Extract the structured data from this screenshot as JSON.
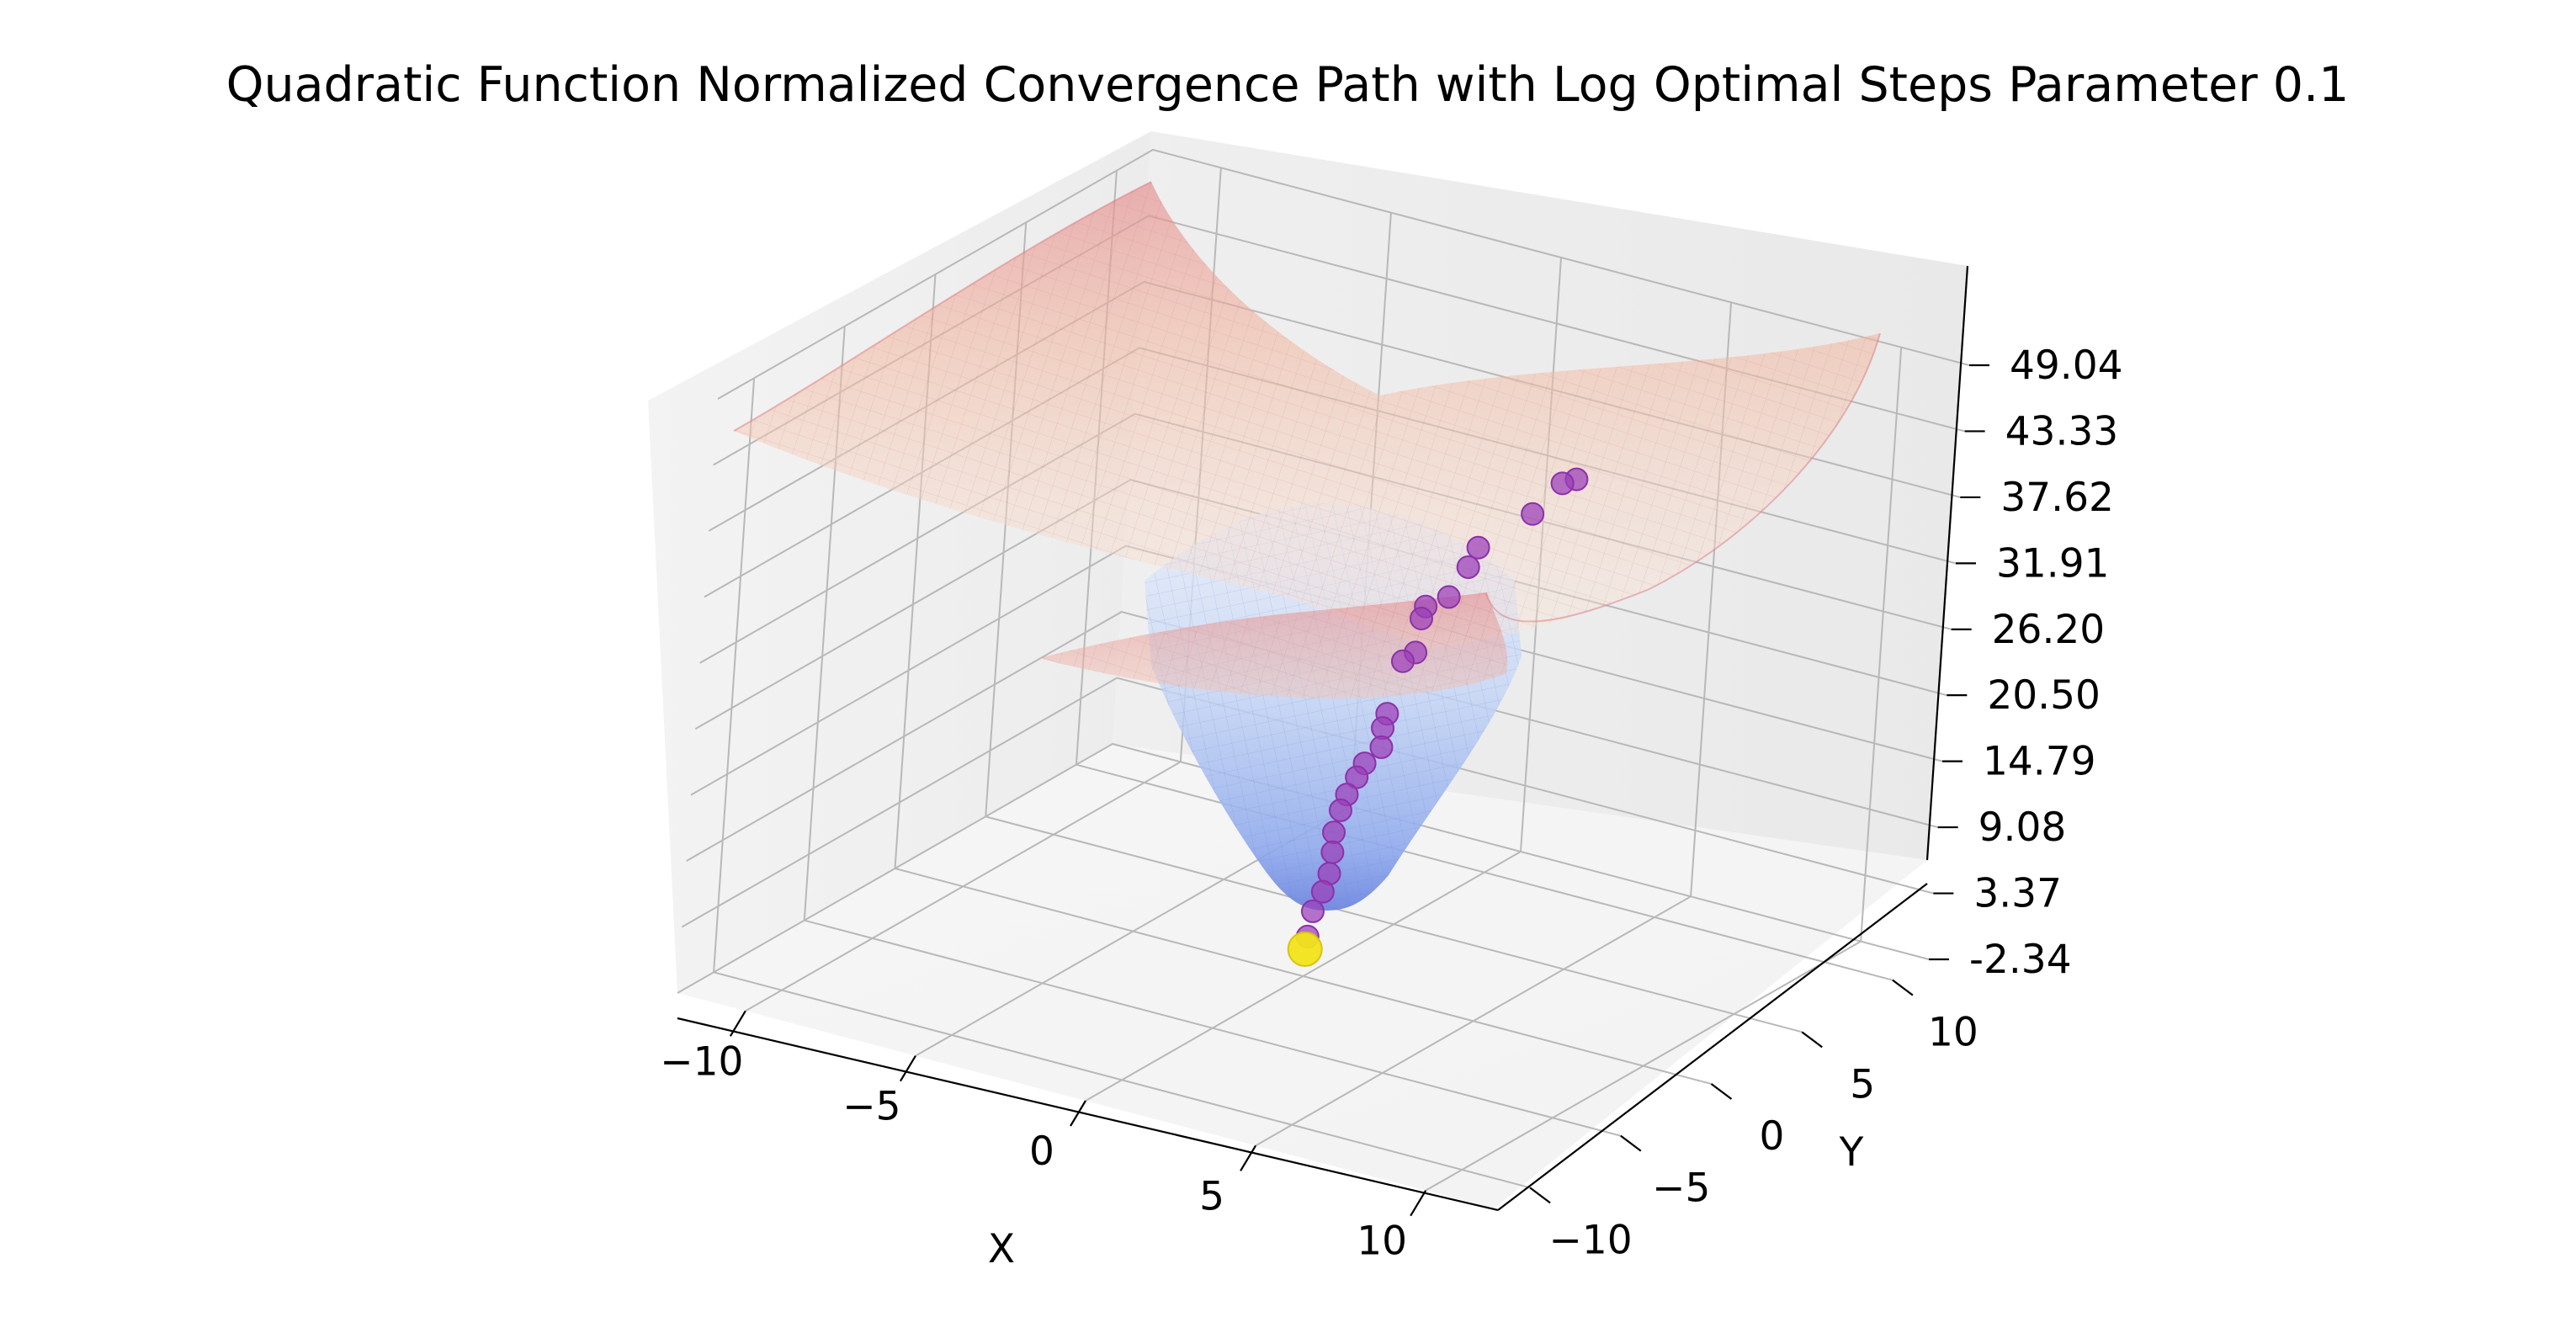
{
  "chart_data": {
    "type": "scatter",
    "title": "Quadratic Function Normalized Convergence Path with Log Optimal Steps Parameter 0.1",
    "xlabel": "X",
    "ylabel": "Y",
    "zlabel": "",
    "xlim": [
      -12,
      12
    ],
    "ylim": [
      -12,
      12
    ],
    "zlim": [
      -2.34,
      49.04
    ],
    "x_ticks": [
      "−10",
      "−5",
      "0",
      "5",
      "10"
    ],
    "y_ticks": [
      "−10",
      "−5",
      "0",
      "5",
      "10"
    ],
    "z_ticks": [
      "-2.34",
      "3.37",
      "9.08",
      "14.79",
      "20.50",
      "26.20",
      "31.91",
      "37.62",
      "43.33",
      "49.04"
    ],
    "grid": true,
    "surfaces": [
      {
        "function": "(x^2 + y^2) / 6",
        "colormap": "coolwarm",
        "opacity": 0.35
      },
      {
        "function": "x^2 + y^2",
        "colormap": "coolwarm",
        "opacity": 0.35
      }
    ],
    "series": [
      {
        "points": [
          {
            "x": 3.6,
            "y": 6.6,
            "z": 37.5
          },
          {
            "x": 3.3,
            "y": 6.4,
            "z": 37.1
          },
          {
            "x": 2.8,
            "y": 5.8,
            "z": 34.6
          },
          {
            "x": 1.6,
            "y": 5.2,
            "z": 31.3
          },
          {
            "x": 1.5,
            "y": 4.9,
            "z": 29.8
          },
          {
            "x": 1.3,
            "y": 4.3,
            "z": 27.6
          },
          {
            "x": 0.7,
            "y": 4.2,
            "z": 26.4
          },
          {
            "x": 0.8,
            "y": 3.8,
            "z": 25.8
          },
          {
            "x": 0.9,
            "y": 3.4,
            "z": 23.3
          },
          {
            "x": 0.6,
            "y": 3.3,
            "z": 22.4
          },
          {
            "x": 0.1,
            "y": 3.6,
            "z": 17.2
          },
          {
            "x": 0.2,
            "y": 3.2,
            "z": 16.4
          },
          {
            "x": 0.3,
            "y": 3.0,
            "z": 15.0
          },
          {
            "x": 0.1,
            "y": 2.5,
            "z": 13.9
          },
          {
            "x": 0.0,
            "y": 2.3,
            "z": 12.8
          },
          {
            "x": -0.1,
            "y": 2.0,
            "z": 11.5
          },
          {
            "x": -0.1,
            "y": 1.7,
            "z": 10.4
          },
          {
            "x": -0.2,
            "y": 1.6,
            "z": 8.5
          },
          {
            "x": 0.0,
            "y": 1.2,
            "z": 7.3
          },
          {
            "x": 0.1,
            "y": 0.9,
            "z": 5.8
          },
          {
            "x": 0.1,
            "y": 0.6,
            "z": 4.5
          },
          {
            "x": 0.0,
            "y": 0.3,
            "z": 3.0
          },
          {
            "x": 0.0,
            "y": 0.1,
            "z": 1.0
          },
          {
            "x": 0.0,
            "y": 0.0,
            "z": 0.0
          }
        ],
        "color": "#9b3fb8",
        "final_point_color": "#f2e31a"
      }
    ]
  }
}
